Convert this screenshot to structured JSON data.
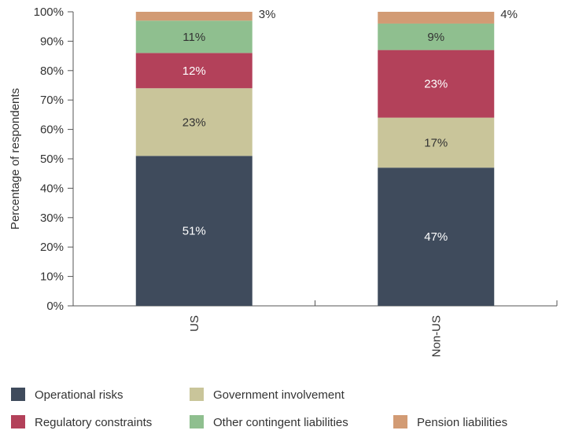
{
  "chart_data": {
    "type": "bar",
    "stacked": true,
    "title": "",
    "xlabel": "",
    "ylabel": "Percentage of respondents",
    "ylim": [
      0,
      100
    ],
    "yticks": [
      "0%",
      "10%",
      "20%",
      "30%",
      "40%",
      "50%",
      "60%",
      "70%",
      "80%",
      "90%",
      "100%"
    ],
    "categories": [
      "US",
      "Non-US"
    ],
    "series": [
      {
        "name": "Operational risks",
        "values": [
          51,
          47
        ],
        "labels": [
          "51%",
          "47%"
        ],
        "color": "#3f4b5c",
        "label_color": "#ffffff"
      },
      {
        "name": "Government involvement",
        "values": [
          23,
          17
        ],
        "labels": [
          "23%",
          "17%"
        ],
        "color": "#c9c59a",
        "label_color": "#333333"
      },
      {
        "name": "Regulatory constraints",
        "values": [
          12,
          23
        ],
        "labels": [
          "12%",
          "23%"
        ],
        "color": "#b3415a",
        "label_color": "#ffffff"
      },
      {
        "name": "Other contingent liabilities",
        "values": [
          11,
          9
        ],
        "labels": [
          "11%",
          "9%"
        ],
        "color": "#8fbf8f",
        "label_color": "#333333"
      },
      {
        "name": "Pension liabilities",
        "values": [
          3,
          4
        ],
        "labels": [
          "3%",
          "4%"
        ],
        "color": "#d29b74",
        "label_color": "#333333"
      }
    ],
    "grid": false,
    "legend_position": "bottom"
  }
}
